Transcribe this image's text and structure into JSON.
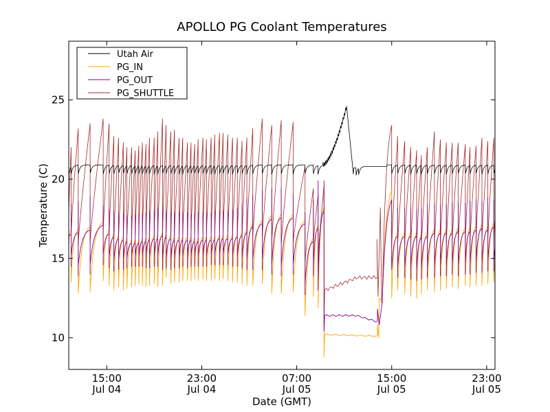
{
  "chart_data": {
    "type": "line",
    "title": "APOLLO PG Coolant Temperatures",
    "xlabel": "Date (GMT)",
    "ylabel": "Temperature (C)",
    "x_units": "hours since Jul 04 00:00 GMT",
    "xlim": [
      11.8,
      47.7
    ],
    "ylim": [
      8,
      28.7
    ],
    "grid": false,
    "legend_position": "top-left",
    "xticks": [
      {
        "x": 15,
        "label_time": "15:00",
        "label_date": "Jul 04"
      },
      {
        "x": 23,
        "label_time": "23:00",
        "label_date": "Jul 04"
      },
      {
        "x": 31,
        "label_time": "07:00",
        "label_date": "Jul 05"
      },
      {
        "x": 39,
        "label_time": "15:00",
        "label_date": "Jul 05"
      },
      {
        "x": 47,
        "label_time": "23:00",
        "label_date": "Jul 05"
      }
    ],
    "yticks": [
      {
        "y": 10,
        "label": "10"
      },
      {
        "y": 15,
        "label": "15"
      },
      {
        "y": 20,
        "label": "20"
      },
      {
        "y": 25,
        "label": "25"
      }
    ],
    "series": [
      {
        "name": "Utah Air",
        "color": "#000000"
      },
      {
        "name": "PG_IN",
        "color": "#ffa500"
      },
      {
        "name": "PG_OUT",
        "color": "#800080"
      },
      {
        "name": "PG_SHUTTLE",
        "color": "#a52a2a"
      }
    ],
    "cycles": {
      "description": "Heating cycles: each cycle starts at hour t; PG_SHUTTLE rises from its trough to 'peak', then drops; PG_IN/PG_OUT dip to 'in_low'/'out_low' at the cycle start and rise toward 'in_high'.",
      "items": [
        {
          "t": 11.8,
          "peak": 22.0,
          "in_low": 15.8,
          "out_low": 15.8,
          "in_high": 16.8
        },
        {
          "t": 12.0,
          "peak": 23.2,
          "in_low": 13.5,
          "out_low": 14.5,
          "in_high": 17.0
        },
        {
          "t": 12.6,
          "peak": 23.5,
          "in_low": 12.8,
          "out_low": 13.9,
          "in_high": 17.2
        },
        {
          "t": 13.6,
          "peak": 23.8,
          "in_low": 12.9,
          "out_low": 14.0,
          "in_high": 17.5
        },
        {
          "t": 14.7,
          "peak": 23.5,
          "in_low": 13.6,
          "out_low": 14.6,
          "in_high": 16.9
        },
        {
          "t": 15.2,
          "peak": 22.7,
          "in_low": 13.3,
          "out_low": 14.4,
          "in_high": 16.7
        },
        {
          "t": 15.6,
          "peak": 22.6,
          "in_low": 13.0,
          "out_low": 14.2,
          "in_high": 16.6
        },
        {
          "t": 16.0,
          "peak": 22.3,
          "in_low": 13.2,
          "out_low": 14.3,
          "in_high": 16.5
        },
        {
          "t": 16.4,
          "peak": 22.0,
          "in_low": 13.0,
          "out_low": 14.3,
          "in_high": 16.4
        },
        {
          "t": 16.7,
          "peak": 22.0,
          "in_low": 13.1,
          "out_low": 14.4,
          "in_high": 16.3
        },
        {
          "t": 17.1,
          "peak": 21.8,
          "in_low": 13.2,
          "out_low": 14.5,
          "in_high": 16.3
        },
        {
          "t": 17.4,
          "peak": 22.1,
          "in_low": 13.3,
          "out_low": 14.5,
          "in_high": 16.3
        },
        {
          "t": 17.7,
          "peak": 22.3,
          "in_low": 13.4,
          "out_low": 14.5,
          "in_high": 16.4
        },
        {
          "t": 18.0,
          "peak": 22.2,
          "in_low": 13.3,
          "out_low": 14.5,
          "in_high": 16.4
        },
        {
          "t": 18.3,
          "peak": 22.6,
          "in_low": 13.2,
          "out_low": 14.4,
          "in_high": 16.5
        },
        {
          "t": 18.6,
          "peak": 22.6,
          "in_low": 13.3,
          "out_low": 14.4,
          "in_high": 16.6
        },
        {
          "t": 19.0,
          "peak": 23.0,
          "in_low": 13.4,
          "out_low": 14.5,
          "in_high": 16.6
        },
        {
          "t": 19.3,
          "peak": 23.8,
          "in_low": 13.2,
          "out_low": 14.5,
          "in_high": 16.8
        },
        {
          "t": 19.7,
          "peak": 23.4,
          "in_low": 13.3,
          "out_low": 14.3,
          "in_high": 16.7
        },
        {
          "t": 20.0,
          "peak": 23.0,
          "in_low": 13.8,
          "out_low": 14.4,
          "in_high": 16.6
        },
        {
          "t": 20.4,
          "peak": 23.1,
          "in_low": 13.4,
          "out_low": 14.3,
          "in_high": 16.5
        },
        {
          "t": 20.7,
          "peak": 22.6,
          "in_low": 13.5,
          "out_low": 14.4,
          "in_high": 16.5
        },
        {
          "t": 21.1,
          "peak": 22.6,
          "in_low": 13.5,
          "out_low": 14.4,
          "in_high": 16.5
        },
        {
          "t": 21.4,
          "peak": 22.3,
          "in_low": 13.6,
          "out_low": 14.5,
          "in_high": 16.5
        },
        {
          "t": 21.8,
          "peak": 22.3,
          "in_low": 13.6,
          "out_low": 14.4,
          "in_high": 16.5
        },
        {
          "t": 22.1,
          "peak": 22.2,
          "in_low": 13.6,
          "out_low": 14.5,
          "in_high": 16.4
        },
        {
          "t": 22.4,
          "peak": 22.5,
          "in_low": 13.7,
          "out_low": 14.5,
          "in_high": 16.4
        },
        {
          "t": 22.7,
          "peak": 22.6,
          "in_low": 13.6,
          "out_low": 14.5,
          "in_high": 16.5
        },
        {
          "t": 23.1,
          "peak": 22.5,
          "in_low": 13.7,
          "out_low": 14.5,
          "in_high": 16.5
        },
        {
          "t": 23.4,
          "peak": 22.6,
          "in_low": 13.6,
          "out_low": 14.5,
          "in_high": 16.5
        },
        {
          "t": 23.8,
          "peak": 22.8,
          "in_low": 13.6,
          "out_low": 14.6,
          "in_high": 16.5
        },
        {
          "t": 24.1,
          "peak": 22.9,
          "in_low": 13.7,
          "out_low": 14.6,
          "in_high": 16.6
        },
        {
          "t": 24.5,
          "peak": 22.9,
          "in_low": 13.6,
          "out_low": 14.6,
          "in_high": 16.6
        },
        {
          "t": 24.8,
          "peak": 22.8,
          "in_low": 13.7,
          "out_low": 14.6,
          "in_high": 16.6
        },
        {
          "t": 25.2,
          "peak": 22.6,
          "in_low": 13.6,
          "out_low": 14.6,
          "in_high": 16.6
        },
        {
          "t": 25.6,
          "peak": 22.6,
          "in_low": 13.5,
          "out_low": 14.5,
          "in_high": 16.7
        },
        {
          "t": 26.0,
          "peak": 22.4,
          "in_low": 13.5,
          "out_low": 14.5,
          "in_high": 16.8
        },
        {
          "t": 26.4,
          "peak": 22.6,
          "in_low": 13.4,
          "out_low": 14.4,
          "in_high": 17.0
        },
        {
          "t": 26.8,
          "peak": 23.2,
          "in_low": 13.3,
          "out_low": 14.3,
          "in_high": 17.4
        },
        {
          "t": 27.3,
          "peak": 23.8,
          "in_low": 13.3,
          "out_low": 14.3,
          "in_high": 17.6
        },
        {
          "t": 28.1,
          "peak": 23.4,
          "in_low": 13.4,
          "out_low": 14.3,
          "in_high": 17.9
        },
        {
          "t": 28.9,
          "peak": 23.7,
          "in_low": 12.8,
          "out_low": 14.0,
          "in_high": 18.0
        },
        {
          "t": 29.7,
          "peak": 23.6,
          "in_low": 12.8,
          "out_low": 13.9,
          "in_high": 18.0
        },
        {
          "t": 30.7,
          "peak": 20.8,
          "in_low": 12.9,
          "out_low": 14.0,
          "in_high": 17.6
        },
        {
          "t": 31.7,
          "peak": 19.4,
          "in_low": 11.4,
          "out_low": 12.7,
          "in_high": 16.5
        },
        {
          "t": 32.4,
          "peak": 19.0,
          "in_low": 12.6,
          "out_low": 13.9,
          "in_high": 17.3
        },
        {
          "t": 32.8,
          "peak": 19.6,
          "in_low": 11.9,
          "out_low": 13.0,
          "in_high": 18.5
        }
      ],
      "recovery_items": [
        {
          "t": 38.6,
          "peak": 22.7,
          "in_low": 12.5,
          "out_low": 13.7,
          "in_high": 16.8
        },
        {
          "t": 39.1,
          "peak": 22.4,
          "in_low": 13.0,
          "out_low": 13.8,
          "in_high": 16.8
        },
        {
          "t": 39.7,
          "peak": 22.0,
          "in_low": 12.8,
          "out_low": 13.8,
          "in_high": 16.8
        },
        {
          "t": 40.2,
          "peak": 21.8,
          "in_low": 12.6,
          "out_low": 13.7,
          "in_high": 16.8
        },
        {
          "t": 40.7,
          "peak": 21.5,
          "in_low": 12.5,
          "out_low": 13.6,
          "in_high": 16.7
        },
        {
          "t": 41.1,
          "peak": 22.0,
          "in_low": 12.8,
          "out_low": 13.7,
          "in_high": 16.8
        },
        {
          "t": 41.6,
          "peak": 23.0,
          "in_low": 13.0,
          "out_low": 13.8,
          "in_high": 17.0
        },
        {
          "t": 42.2,
          "peak": 22.5,
          "in_low": 12.9,
          "out_low": 13.8,
          "in_high": 17.0
        },
        {
          "t": 42.7,
          "peak": 22.3,
          "in_low": 13.0,
          "out_low": 13.9,
          "in_high": 17.0
        },
        {
          "t": 43.2,
          "peak": 22.3,
          "in_low": 13.1,
          "out_low": 13.9,
          "in_high": 17.0
        },
        {
          "t": 43.7,
          "peak": 22.3,
          "in_low": 13.2,
          "out_low": 14.0,
          "in_high": 17.1
        },
        {
          "t": 44.2,
          "peak": 22.2,
          "in_low": 13.1,
          "out_low": 13.9,
          "in_high": 17.1
        },
        {
          "t": 44.8,
          "peak": 22.0,
          "in_low": 13.3,
          "out_low": 14.0,
          "in_high": 17.1
        },
        {
          "t": 45.2,
          "peak": 22.1,
          "in_low": 13.2,
          "out_low": 14.0,
          "in_high": 17.2
        },
        {
          "t": 45.7,
          "peak": 22.6,
          "in_low": 13.3,
          "out_low": 14.1,
          "in_high": 17.3
        },
        {
          "t": 46.2,
          "peak": 22.4,
          "in_low": 13.3,
          "out_low": 14.1,
          "in_high": 17.2
        },
        {
          "t": 46.7,
          "peak": 22.6,
          "in_low": 13.4,
          "out_low": 14.2,
          "in_high": 17.4
        },
        {
          "t": 47.2,
          "peak": 22.3,
          "in_low": 13.5,
          "out_low": 14.2,
          "in_high": 17.3
        }
      ]
    },
    "events": {
      "shutdown": {
        "start": 33.3,
        "end": 37.8,
        "shuttle_level": 13.0,
        "shuttle_end": 13.8,
        "out_level": 11.4,
        "out_end": 11.0,
        "in_level": 10.2,
        "in_end": 10.1,
        "in_min": 8.8,
        "out_min": 10.4
      },
      "warm_recovery": {
        "start": 37.8,
        "end": 38.6,
        "shuttle_start": 16.5,
        "shuttle_end": 23.4,
        "in_start": 12.3,
        "in_end": 19.3,
        "out_start": 12.2,
        "out_end": 18.7
      },
      "recovery_start": 38.0,
      "recovery_end": 38.6,
      "utah_air_spike": {
        "start": 33.2,
        "peak_time": 35.2,
        "peak": 24.6,
        "end": 35.8,
        "min_after": 20.0
      }
    },
    "utah_air_baseline": 20.9,
    "utah_air_dip": 20.3
  }
}
